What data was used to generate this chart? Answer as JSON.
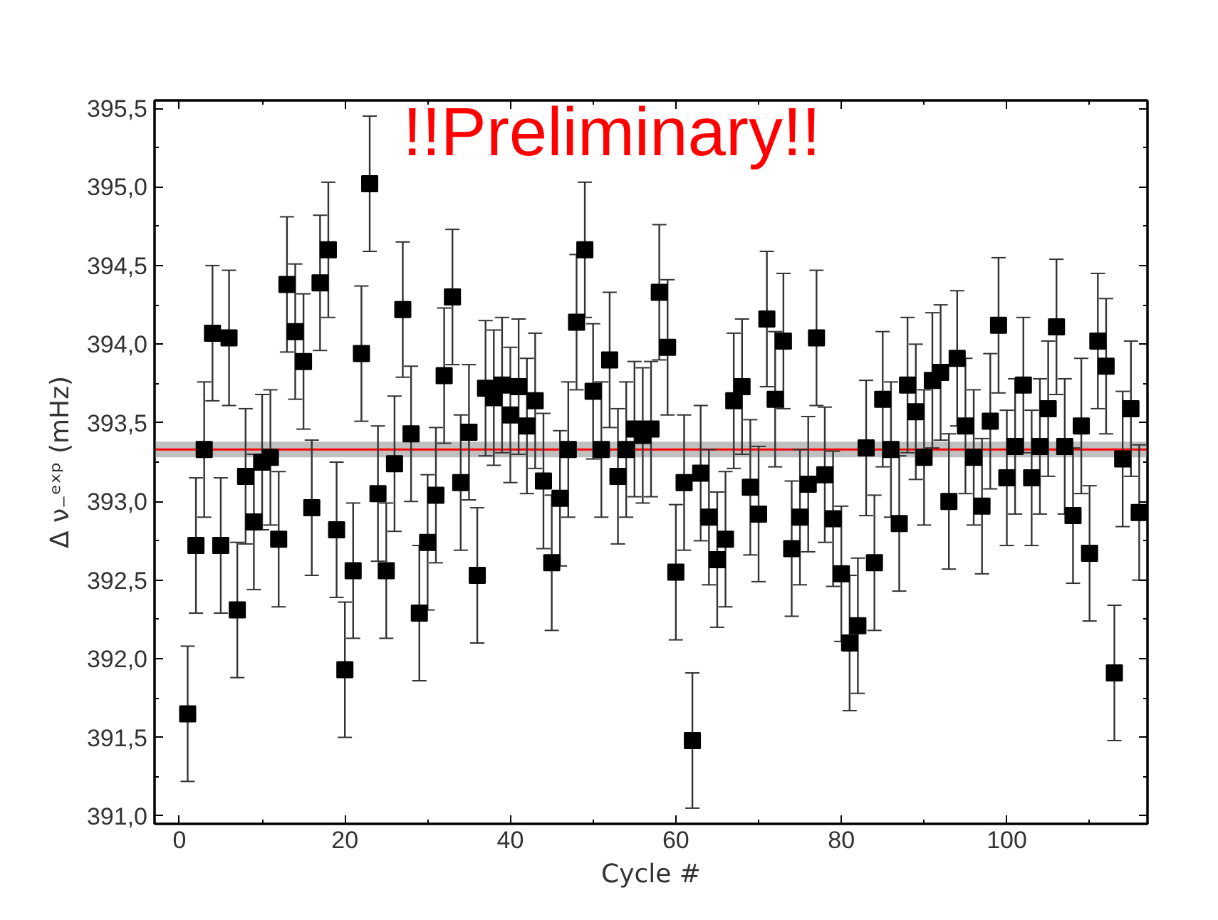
{
  "chart_data": {
    "type": "scatter",
    "xlabel": "Cycle #",
    "ylabel": "Δ ν₋ᵉˣᵖ (mHz)",
    "annotations": [
      "!!Preliminary!!"
    ],
    "x": [
      1,
      2,
      3,
      4,
      5,
      6,
      7,
      8,
      9,
      10,
      11,
      12,
      13,
      14,
      15,
      16,
      17,
      18,
      19,
      20,
      21,
      22,
      23,
      24,
      25,
      26,
      27,
      28,
      29,
      30,
      31,
      32,
      33,
      34,
      35,
      36,
      37,
      38,
      39,
      40,
      41,
      42,
      43,
      44,
      45,
      46,
      47,
      48,
      49,
      50,
      51,
      52,
      53,
      54,
      55,
      56,
      57,
      58,
      59,
      60,
      61,
      62,
      63,
      64,
      65,
      66,
      67,
      68,
      69,
      70,
      71,
      72,
      73,
      74,
      75,
      76,
      77,
      78,
      79,
      80,
      81,
      82,
      83,
      84,
      85,
      86,
      87,
      88,
      89,
      90,
      91,
      92,
      93,
      94,
      95,
      96,
      97,
      98,
      99,
      100,
      101,
      102,
      103,
      104,
      105,
      106,
      107,
      108,
      109,
      110,
      111,
      112,
      113,
      114,
      115,
      116
    ],
    "series": [
      {
        "color": "#000000",
        "values": [
          391.65,
          392.72,
          393.33,
          394.07,
          392.72,
          394.04,
          392.31,
          393.16,
          392.87,
          393.25,
          393.28,
          392.76,
          394.38,
          394.08,
          393.89,
          392.96,
          394.39,
          394.6,
          392.82,
          391.93,
          392.56,
          393.94,
          395.02,
          393.05,
          392.56,
          393.24,
          394.22,
          393.43,
          392.29,
          392.74,
          393.04,
          393.8,
          394.3,
          393.12,
          393.44,
          392.53,
          393.72,
          393.66,
          393.74,
          393.55,
          393.73,
          393.48,
          393.64,
          393.13,
          392.61,
          393.02,
          393.33,
          394.14,
          394.6,
          393.7,
          393.33,
          393.9,
          393.16,
          393.33,
          393.46,
          393.42,
          393.46,
          394.33,
          393.98,
          392.55,
          393.12,
          391.48,
          393.18,
          392.9,
          392.63,
          392.76,
          393.64,
          393.73,
          393.09,
          392.92,
          394.16,
          393.65,
          394.02,
          392.7,
          392.9,
          393.11,
          394.04,
          393.17,
          392.89,
          392.54,
          392.1,
          392.21,
          393.34,
          392.61,
          393.65,
          393.33,
          392.86,
          393.74,
          393.57,
          393.28,
          393.77,
          393.82,
          393.0,
          393.91,
          393.48,
          393.28,
          392.97,
          393.51,
          394.12,
          393.15,
          393.35,
          393.74,
          393.15,
          393.35,
          393.59,
          394.11,
          393.35,
          392.91,
          393.48,
          392.67,
          394.02,
          393.86,
          391.91,
          393.27,
          393.59,
          392.93
        ],
        "errors": [
          0.43,
          0.43,
          0.43,
          0.43,
          0.43,
          0.43,
          0.43,
          0.43,
          0.43,
          0.43,
          0.43,
          0.43,
          0.43,
          0.43,
          0.43,
          0.43,
          0.43,
          0.43,
          0.43,
          0.43,
          0.43,
          0.43,
          0.43,
          0.43,
          0.43,
          0.43,
          0.43,
          0.43,
          0.43,
          0.43,
          0.43,
          0.43,
          0.43,
          0.43,
          0.43,
          0.43,
          0.43,
          0.43,
          0.43,
          0.43,
          0.43,
          0.43,
          0.43,
          0.43,
          0.43,
          0.43,
          0.43,
          0.43,
          0.43,
          0.43,
          0.43,
          0.43,
          0.43,
          0.43,
          0.43,
          0.43,
          0.43,
          0.43,
          0.43,
          0.43,
          0.43,
          0.43,
          0.43,
          0.43,
          0.43,
          0.43,
          0.43,
          0.43,
          0.43,
          0.43,
          0.43,
          0.43,
          0.43,
          0.43,
          0.43,
          0.43,
          0.43,
          0.43,
          0.43,
          0.43,
          0.43,
          0.43,
          0.43,
          0.43,
          0.43,
          0.43,
          0.43,
          0.43,
          0.43,
          0.43,
          0.43,
          0.43,
          0.43,
          0.43,
          0.43,
          0.43,
          0.43,
          0.43,
          0.43,
          0.43,
          0.43,
          0.43,
          0.43,
          0.43,
          0.43,
          0.43,
          0.43,
          0.43,
          0.43,
          0.43,
          0.43,
          0.43,
          0.43,
          0.43,
          0.43,
          0.43
        ]
      }
    ],
    "marker": "square",
    "xlim": [
      -3,
      117
    ],
    "ylim": [
      390.95,
      395.55
    ],
    "xticks": [
      0,
      {
        "value": 10,
        "label": null
      },
      20,
      {
        "value": 30,
        "label": null
      },
      40,
      {
        "value": 50,
        "label": null
      },
      60,
      {
        "value": 70,
        "label": null
      },
      80,
      {
        "value": 90,
        "label": null
      },
      100,
      {
        "value": 110,
        "label": null
      }
    ],
    "yticks": [
      {
        "value": 391.0,
        "label": "391,0"
      },
      {
        "value": 391.25,
        "label": null
      },
      {
        "value": 391.5,
        "label": "391,5"
      },
      {
        "value": 391.75,
        "label": null
      },
      {
        "value": 392.0,
        "label": "392,0"
      },
      {
        "value": 392.25,
        "label": null
      },
      {
        "value": 392.5,
        "label": "392,5"
      },
      {
        "value": 392.75,
        "label": null
      },
      {
        "value": 393.0,
        "label": "393,0"
      },
      {
        "value": 393.25,
        "label": null
      },
      {
        "value": 393.5,
        "label": "393,5"
      },
      {
        "value": 393.75,
        "label": null
      },
      {
        "value": 394.0,
        "label": "394,0"
      },
      {
        "value": 394.25,
        "label": null
      },
      {
        "value": 394.5,
        "label": "394,5"
      },
      {
        "value": 394.75,
        "label": null
      },
      {
        "value": 395.0,
        "label": "395,0"
      },
      {
        "value": 395.25,
        "label": null
      },
      {
        "value": 395.5,
        "label": "395,5"
      }
    ],
    "bands": [
      {
        "axis": "y",
        "from": 393.28,
        "to": 393.38,
        "color": "#c0c0c0"
      }
    ],
    "ref_lines": [
      {
        "axis": "y",
        "value": 393.33,
        "color": "#ff0000"
      }
    ]
  }
}
